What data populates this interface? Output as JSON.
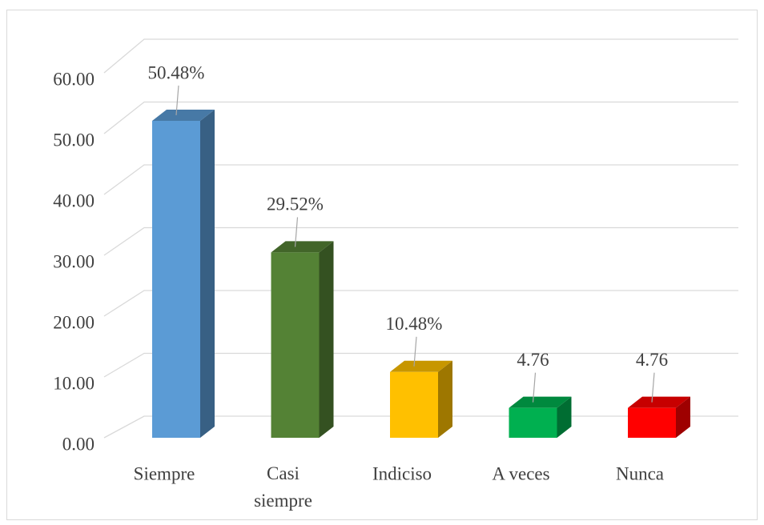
{
  "chart_data": {
    "type": "bar3d",
    "categories": [
      "Siempre",
      "Casi siempre",
      "Indiciso",
      "A veces",
      "Nunca"
    ],
    "values": [
      50.48,
      29.52,
      10.48,
      4.76,
      4.76
    ],
    "value_labels": [
      "50.48%",
      "29.52%",
      "10.48%",
      "4.76",
      "4.76"
    ],
    "colors": [
      "#5b9bd5",
      "#548235",
      "#ffc000",
      "#00b050",
      "#ff0000"
    ],
    "ylim": [
      0,
      60
    ],
    "yticks": [
      {
        "value": 0,
        "label": "0.00"
      },
      {
        "value": 10,
        "label": "10.00"
      },
      {
        "value": 20,
        "label": "20.00"
      },
      {
        "value": 30,
        "label": "30.00"
      },
      {
        "value": 40,
        "label": "40.00"
      },
      {
        "value": 50,
        "label": "50.00"
      },
      {
        "value": 60,
        "label": "60.00"
      }
    ],
    "grid": true
  }
}
